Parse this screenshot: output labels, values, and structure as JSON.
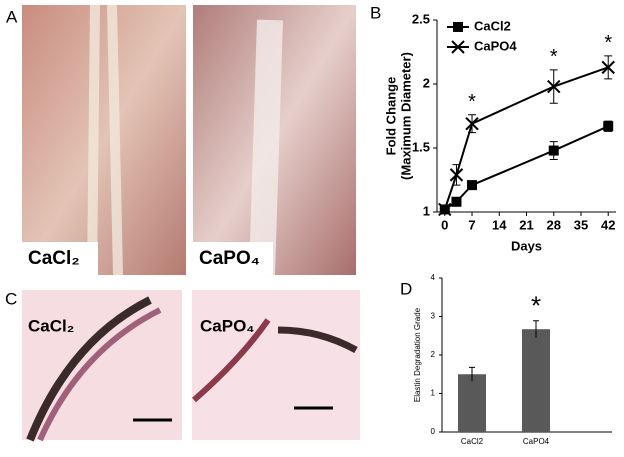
{
  "panels": {
    "labels": [
      "A",
      "B",
      "C",
      "D"
    ],
    "photo_labels": [
      "CaCl₂",
      "CaPO₄"
    ],
    "histology_labels": [
      "CaCl₂",
      "CaPO₄"
    ]
  },
  "chart_data": [
    {
      "type": "line",
      "xlabel": "Days",
      "ylabel": [
        "Fold Change",
        "(Maximum Diameter)"
      ],
      "xlim": [
        -2,
        44
      ],
      "xticks": [
        0,
        7,
        14,
        21,
        28,
        35,
        42
      ],
      "ylim": [
        1,
        2.5
      ],
      "yticks": [
        1,
        1.5,
        2,
        2.5
      ],
      "legend": "upper left",
      "significance_label": "*",
      "series": [
        {
          "name": "CaCl2",
          "color": "#000000",
          "marker": "square",
          "x": [
            0,
            3,
            7,
            28,
            42
          ],
          "values": [
            1.02,
            1.08,
            1.21,
            1.48,
            1.67
          ],
          "errors": [
            0.02,
            0.03,
            0.03,
            0.07,
            0.04
          ],
          "significant": [
            false,
            false,
            false,
            false,
            false
          ]
        },
        {
          "name": "CaPO4",
          "color": "#000000",
          "marker": "x",
          "x": [
            0,
            3,
            7,
            28,
            42
          ],
          "values": [
            1.02,
            1.29,
            1.69,
            1.98,
            2.13
          ],
          "errors": [
            0.02,
            0.08,
            0.07,
            0.13,
            0.09
          ],
          "significant": [
            false,
            false,
            true,
            true,
            true
          ]
        }
      ]
    },
    {
      "type": "bar",
      "ylabel": "Elastin Degradation Grade",
      "categories": [
        "CaCl2",
        "CaPO4"
      ],
      "values": [
        1.5,
        2.67
      ],
      "errors": [
        0.18,
        0.22
      ],
      "color": "#595959",
      "ylim": [
        0,
        4
      ],
      "yticks": [
        0,
        1,
        2,
        3,
        4
      ],
      "significance_label": "*",
      "significant": [
        false,
        true
      ]
    }
  ]
}
